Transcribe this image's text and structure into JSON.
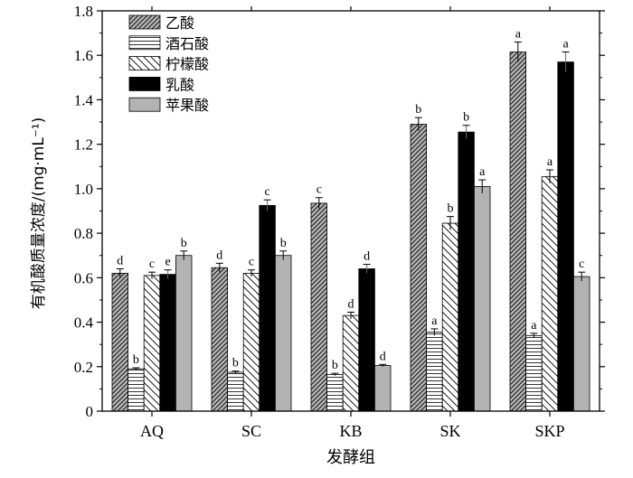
{
  "chart_data": {
    "type": "bar",
    "xlabel": "发酵组",
    "ylabel": "有机酸质量浓度/(mg·mL⁻¹)",
    "ylim": [
      0,
      1.8
    ],
    "yticks": [
      "0",
      "0.2",
      "0.4",
      "0.6",
      "0.8",
      "1.0",
      "1.2",
      "1.4",
      "1.6",
      "1.8"
    ],
    "categories": [
      "AQ",
      "SC",
      "KB",
      "SK",
      "SKP"
    ],
    "legend_position": "top-left",
    "series": [
      {
        "name": "乙酸",
        "pattern": "diagonal-dense",
        "values": [
          0.62,
          0.645,
          0.935,
          1.29,
          1.615
        ],
        "errors": [
          0.02,
          0.02,
          0.025,
          0.03,
          0.045
        ],
        "letters": [
          "d",
          "d",
          "c",
          "b",
          "a"
        ]
      },
      {
        "name": "酒石酸",
        "pattern": "horizontal-lines",
        "values": [
          0.19,
          0.175,
          0.165,
          0.355,
          0.34
        ],
        "errors": [
          0.005,
          0.005,
          0.005,
          0.015,
          0.01
        ],
        "letters": [
          "b",
          "b",
          "b",
          "a",
          "a"
        ]
      },
      {
        "name": "柠檬酸",
        "pattern": "diagonal-sparse",
        "values": [
          0.61,
          0.62,
          0.43,
          0.845,
          1.055
        ],
        "errors": [
          0.015,
          0.015,
          0.015,
          0.03,
          0.03
        ],
        "letters": [
          "c",
          "c",
          "d",
          "b",
          "a"
        ]
      },
      {
        "name": "乳酸",
        "pattern": "solid-black",
        "values": [
          0.615,
          0.925,
          0.64,
          1.255,
          1.57
        ],
        "errors": [
          0.02,
          0.025,
          0.02,
          0.03,
          0.045
        ],
        "letters": [
          "e",
          "c",
          "d",
          "b",
          "a"
        ]
      },
      {
        "name": "苹果酸",
        "pattern": "solid-gray",
        "values": [
          0.7,
          0.7,
          0.205,
          1.01,
          0.605
        ],
        "errors": [
          0.02,
          0.02,
          0.005,
          0.03,
          0.02
        ],
        "letters": [
          "b",
          "b",
          "d",
          "a",
          "c"
        ]
      }
    ],
    "colors": {
      "gray_fill": "#b3b3b3",
      "black_fill": "#000000",
      "stroke": "#000000"
    }
  }
}
